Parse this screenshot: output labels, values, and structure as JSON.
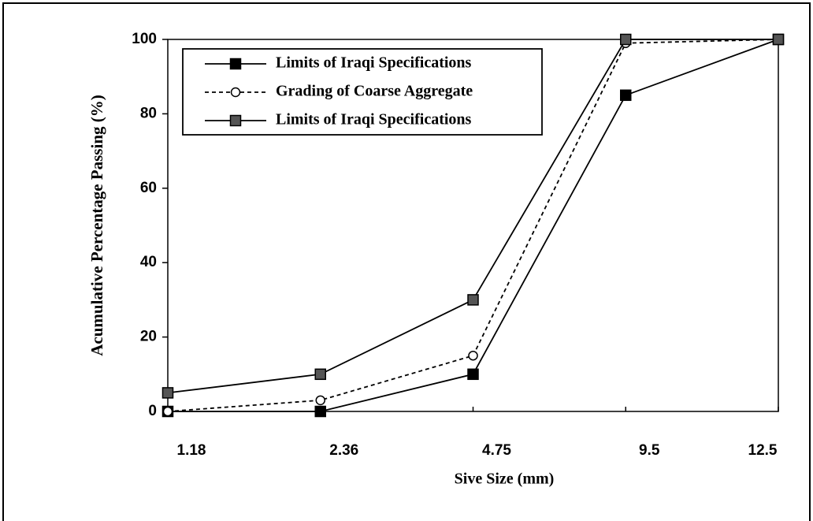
{
  "chart_data": {
    "type": "line",
    "x_label": "Sive Size (mm)",
    "y_label": "Acumulative Percentage Passing (%)",
    "categories": [
      "1.18",
      "2.36",
      "4.75",
      "9.5",
      "12.5"
    ],
    "series": [
      {
        "name": "Limits of Iraqi Specifications",
        "color": "#000000",
        "marker": "square",
        "dashed": false,
        "values": [
          0,
          0,
          10,
          85,
          100
        ]
      },
      {
        "name": "Grading of Coarse Aggregate",
        "color": "#ffffff",
        "marker": "circle",
        "dashed": true,
        "values": [
          0,
          3,
          15,
          99,
          100
        ]
      },
      {
        "name": "Limits of Iraqi Specifications",
        "color": "#555555",
        "marker": "square",
        "dashed": false,
        "values": [
          5,
          10,
          30,
          100,
          100
        ]
      }
    ],
    "ylim": [
      0,
      100
    ],
    "yticks": [
      0,
      20,
      40,
      60,
      80,
      100
    ],
    "legend": "top-left"
  }
}
